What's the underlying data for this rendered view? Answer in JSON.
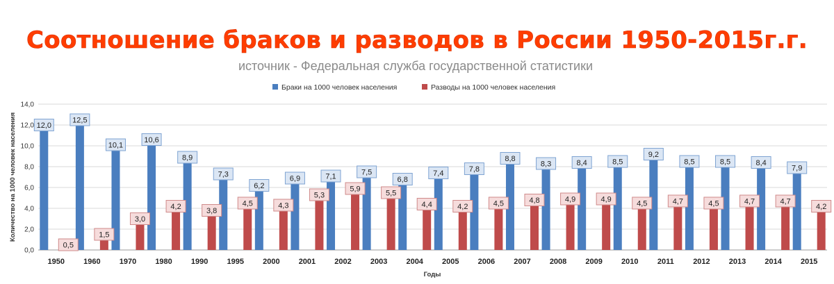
{
  "banner_title": "Соотношение браков и разводов в России 1950-2015г.г.",
  "subtitle": "источник - Федеральная служба государственной статистики",
  "colors": {
    "title": "#ff3d00",
    "marriages": "#4a7ebf",
    "divorces": "#bf4b4b",
    "marriages_label_bg": "#dbe6f4",
    "marriages_label_border": "#7ea3d2",
    "divorces_label_bg": "#f6dcdc",
    "divorces_label_border": "#cf8a8a",
    "gridline": "#d9d9d9"
  },
  "chart_data": {
    "type": "bar",
    "title": "",
    "xlabel": "Годы",
    "ylabel": "Количество на 1000 человек населения",
    "ylim": [
      0,
      14
    ],
    "yticks": [
      "0,0",
      "2,0",
      "4,0",
      "6,0",
      "8,0",
      "10,0",
      "12,0",
      "14,0"
    ],
    "grid": true,
    "legend_position": "top",
    "categories": [
      "1950",
      "1960",
      "1970",
      "1980",
      "1990",
      "1995",
      "2000",
      "2001",
      "2002",
      "2003",
      "2004",
      "2005",
      "2006",
      "2007",
      "2008",
      "2009",
      "2010",
      "2011",
      "2012",
      "2013",
      "2014",
      "2015"
    ],
    "series": [
      {
        "name": "Браки на 1000 человек населения",
        "values": [
          12.0,
          12.5,
          10.1,
          10.6,
          8.9,
          7.3,
          6.2,
          6.9,
          7.1,
          7.5,
          6.8,
          7.4,
          7.8,
          8.8,
          8.3,
          8.4,
          8.5,
          9.2,
          8.5,
          8.5,
          8.4,
          7.9
        ],
        "labels": [
          "12,0",
          "12,5",
          "10,1",
          "10,6",
          "8,9",
          "7,3",
          "6,2",
          "6,9",
          "7,1",
          "7,5",
          "6,8",
          "7,4",
          "7,8",
          "8,8",
          "8,3",
          "8,4",
          "8,5",
          "9,2",
          "8,5",
          "8,5",
          "8,4",
          "7,9"
        ]
      },
      {
        "name": "Разводы на 1000 человек  населения",
        "values": [
          0.5,
          1.5,
          3.0,
          4.2,
          3.8,
          4.5,
          4.3,
          5.3,
          5.9,
          5.5,
          4.4,
          4.2,
          4.5,
          4.8,
          4.9,
          4.9,
          4.5,
          4.7,
          4.5,
          4.7,
          4.7,
          4.2
        ],
        "labels": [
          "0,5",
          "1,5",
          "3,0",
          "4,2",
          "3,8",
          "4,5",
          "4,3",
          "5,3",
          "5,9",
          "5,5",
          "4,4",
          "4,2",
          "4,5",
          "4,8",
          "4,9",
          "4,9",
          "4,5",
          "4,7",
          "4,5",
          "4,7",
          "4,7",
          "4,2"
        ]
      }
    ]
  }
}
